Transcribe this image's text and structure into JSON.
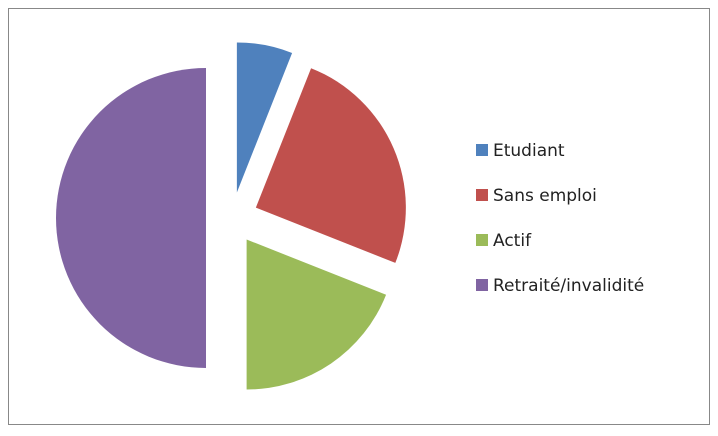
{
  "chart_data": {
    "type": "pie",
    "categories": [
      "Etudiant",
      "Sans emploi",
      "Actif",
      "Retraité/invalidité"
    ],
    "values": [
      6,
      25,
      19,
      50
    ],
    "colors": [
      "#4f81bd",
      "#c0504d",
      "#9bbb59",
      "#8064a2"
    ],
    "exploded": true,
    "legend": "right"
  }
}
